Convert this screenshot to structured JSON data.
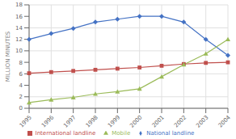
{
  "chart_data": {
    "type": "line",
    "categories": [
      "1995",
      "1996",
      "1997",
      "1998",
      "1999",
      "2000",
      "2001",
      "2002",
      "2003",
      "2004"
    ],
    "series": [
      {
        "name": "National landline",
        "color": "#4472C4",
        "marker": "diamond",
        "values": [
          12,
          13,
          13.9,
          15,
          15.5,
          16,
          16,
          15,
          12,
          9.2
        ]
      },
      {
        "name": "International landline",
        "color": "#C0504D",
        "marker": "square",
        "values": [
          6.1,
          6.3,
          6.5,
          6.7,
          6.9,
          7.1,
          7.4,
          7.7,
          7.9,
          8.0
        ]
      },
      {
        "name": "Mobile",
        "color": "#9BBB59",
        "marker": "triangle",
        "values": [
          1,
          1.5,
          1.9,
          2.5,
          2.9,
          3.4,
          5.5,
          7.6,
          9.5,
          12
        ]
      }
    ],
    "y_label": "MILLION MINUTES",
    "ylim": [
      0,
      18
    ],
    "yticks": [
      0,
      2,
      4,
      6,
      8,
      10,
      12,
      14,
      16,
      18
    ],
    "grid": true,
    "legend": "bottom"
  }
}
